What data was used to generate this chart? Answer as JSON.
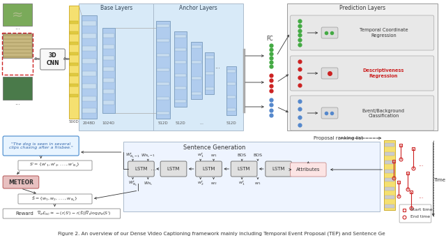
{
  "title": "Figure 2. An overview of our Dense Video Captioning framework mainly including Temporal Event Proposal (TEP) and Sentence Ge",
  "bg_color": "#ffffff",
  "base_label": "Base Layers",
  "anchor_label": "Anchor Layers",
  "pred_label": "Prediction Layers",
  "fc_label": "FC",
  "sent_gen_label": "Sentence Generation",
  "proposal_label": "Proposal ranking list",
  "reward_label": "Reward",
  "meteor_label": "METEOR",
  "cnn_label": "3D\nCNN",
  "time_label": "Time",
  "start_label": "Start time",
  "end_label": "End time",
  "quote_text": "\"The dog is seen in several\nclips chasing after a frisbee.\"",
  "pred_items": [
    "Temporal Coordinate\nRegression",
    "Descriptiveness\nRegression",
    "Event/Background\nClassification"
  ],
  "pred_colors": [
    "#44aa44",
    "#cc2222",
    "#5588cc"
  ],
  "dim_labels": [
    "500D",
    "2048D",
    "1024D",
    "512D",
    "512D",
    "...",
    "512D"
  ]
}
